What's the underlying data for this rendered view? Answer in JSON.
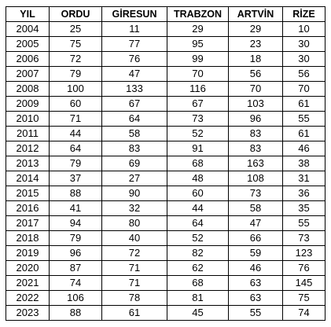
{
  "table": {
    "headers": [
      "YIL",
      "ORDU",
      "GİRESUN",
      "TRABZON",
      "ARTVİN",
      "RİZE"
    ],
    "rows": [
      [
        "2004",
        "25",
        "11",
        "29",
        "29",
        "10"
      ],
      [
        "2005",
        "75",
        "77",
        "95",
        "23",
        "30"
      ],
      [
        "2006",
        "72",
        "76",
        "99",
        "18",
        "30"
      ],
      [
        "2007",
        "79",
        "47",
        "70",
        "56",
        "56"
      ],
      [
        "2008",
        "100",
        "133",
        "116",
        "70",
        "70"
      ],
      [
        "2009",
        "60",
        "67",
        "67",
        "103",
        "61"
      ],
      [
        "2010",
        "71",
        "64",
        "73",
        "96",
        "55"
      ],
      [
        "2011",
        "44",
        "58",
        "52",
        "83",
        "61"
      ],
      [
        "2012",
        "64",
        "83",
        "91",
        "83",
        "46"
      ],
      [
        "2013",
        "79",
        "69",
        "68",
        "163",
        "38"
      ],
      [
        "2014",
        "37",
        "27",
        "48",
        "108",
        "31"
      ],
      [
        "2015",
        "88",
        "90",
        "60",
        "73",
        "36"
      ],
      [
        "2016",
        "41",
        "32",
        "44",
        "58",
        "35"
      ],
      [
        "2017",
        "94",
        "80",
        "64",
        "47",
        "55"
      ],
      [
        "2018",
        "79",
        "40",
        "52",
        "66",
        "73"
      ],
      [
        "2019",
        "96",
        "72",
        "82",
        "59",
        "123"
      ],
      [
        "2020",
        "87",
        "71",
        "62",
        "46",
        "76"
      ],
      [
        "2021",
        "74",
        "71",
        "68",
        "63",
        "145"
      ],
      [
        "2022",
        "106",
        "78",
        "81",
        "63",
        "75"
      ],
      [
        "2023",
        "88",
        "61",
        "45",
        "55",
        "74"
      ]
    ]
  }
}
